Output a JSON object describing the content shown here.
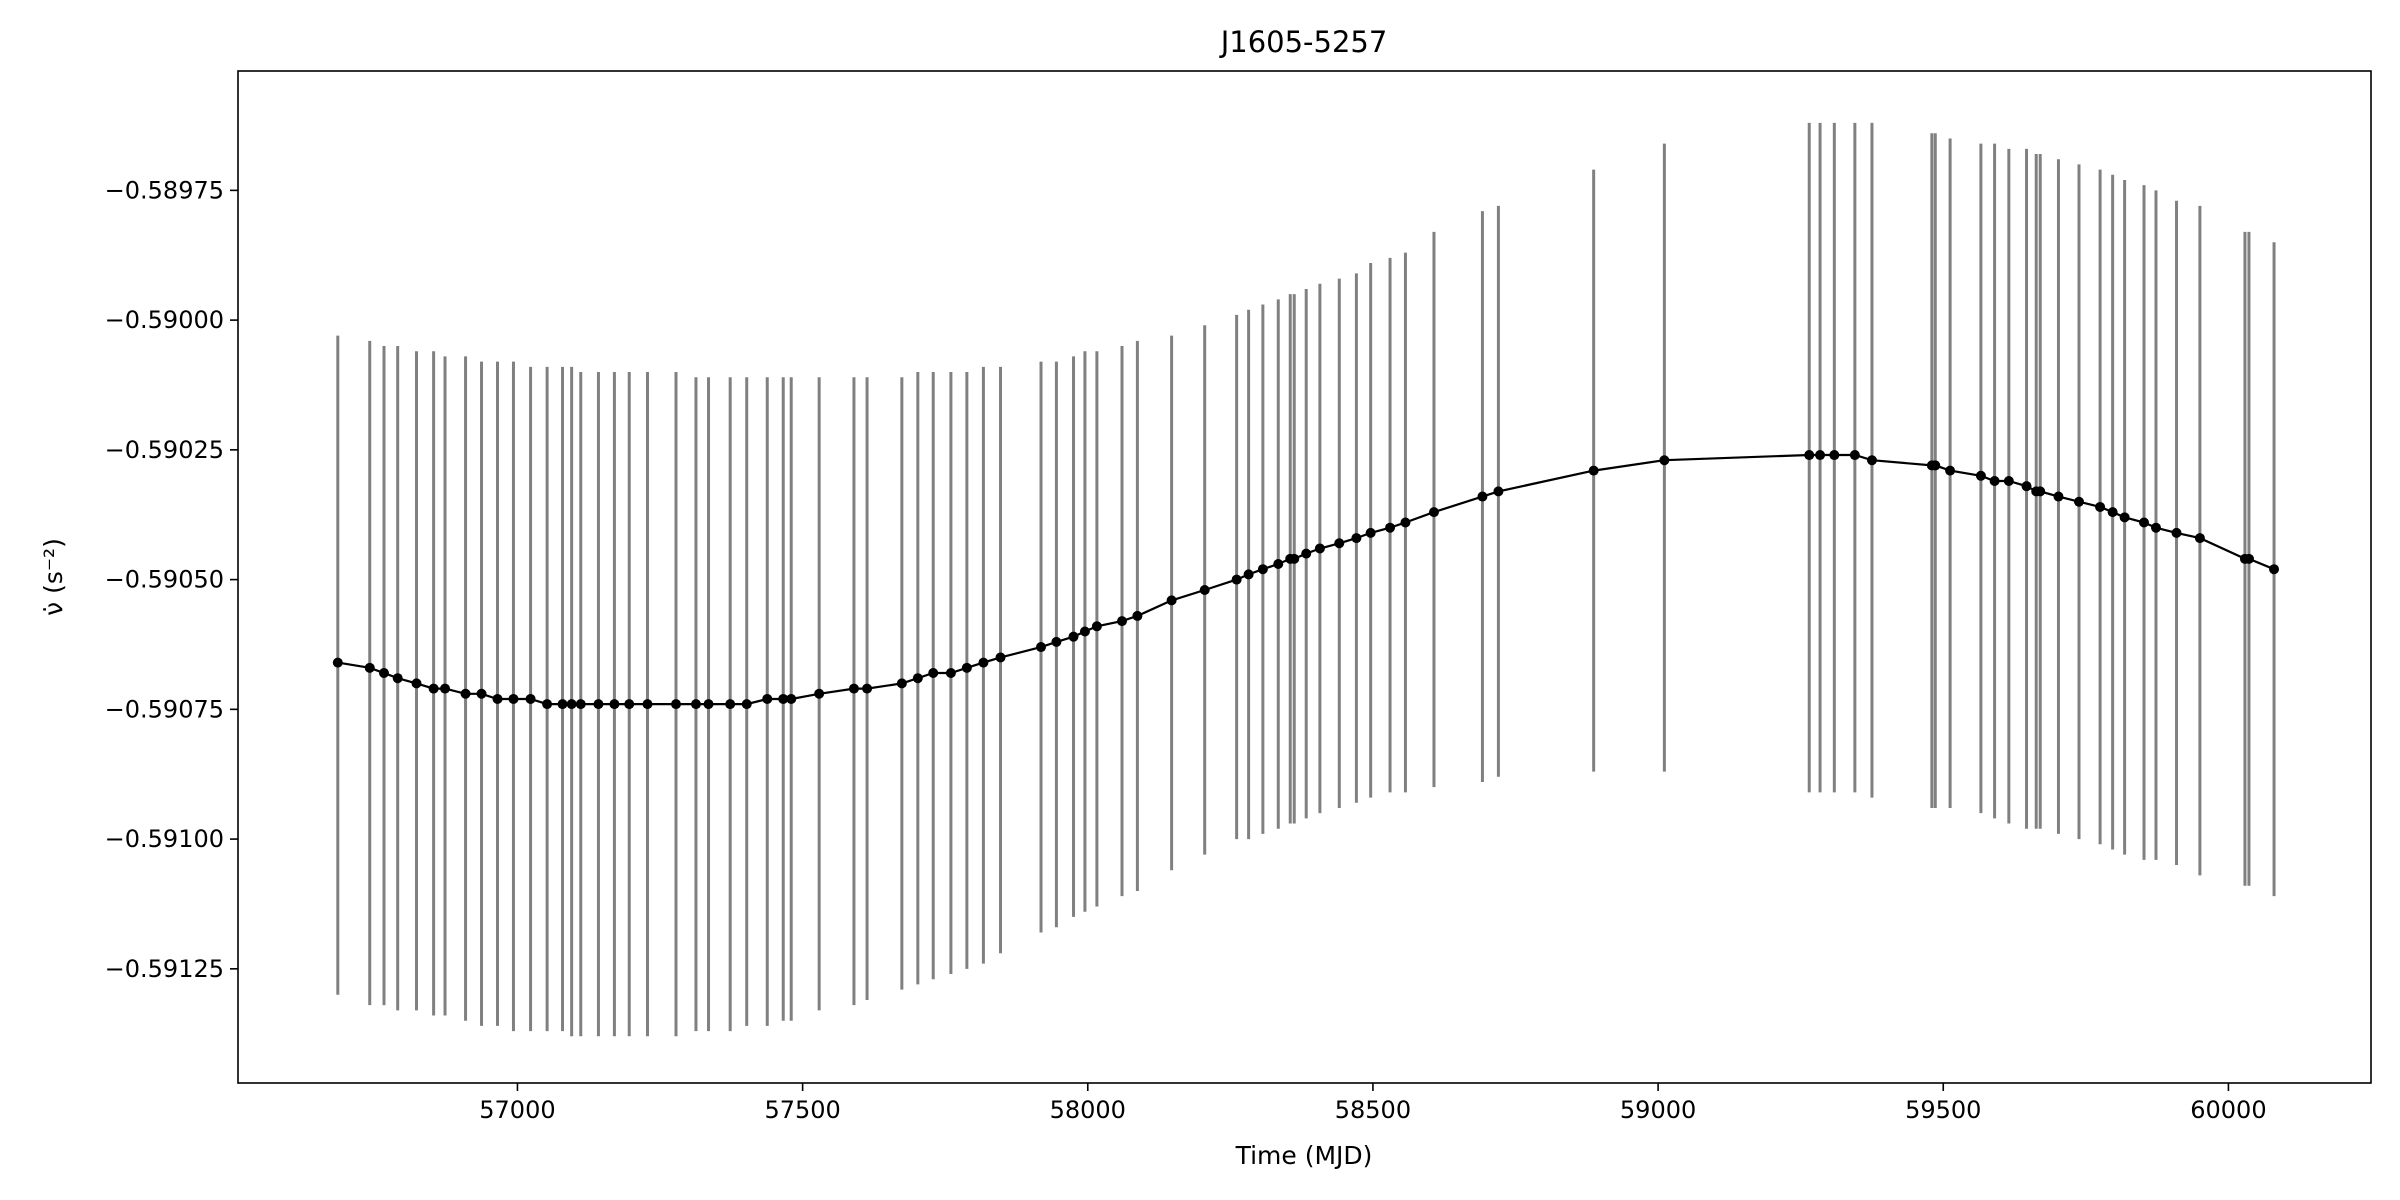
{
  "chart_data": {
    "type": "line",
    "title": "J1605-5257",
    "xlabel": "Time (MJD)",
    "ylabel": "ν̇ (s⁻²)",
    "xlim": [
      56510,
      60250
    ],
    "ylim": [
      -0.59147,
      -0.58952
    ],
    "xticks": [
      57000,
      57500,
      58000,
      58500,
      59000,
      59500,
      60000
    ],
    "xtick_labels": [
      "57000",
      "57500",
      "58000",
      "58500",
      "59000",
      "59500",
      "60000"
    ],
    "yticks": [
      -0.58975,
      -0.59,
      -0.59025,
      -0.5905,
      -0.59075,
      -0.591,
      -0.59125
    ],
    "ytick_labels": [
      "−0.58975",
      "−0.59000",
      "−0.59025",
      "−0.59050",
      "−0.59075",
      "−0.59100",
      "−0.59125"
    ],
    "grid": false,
    "legend": "none",
    "colors": {
      "line": "#000000",
      "marker": "#000000",
      "errorbar": "#808080"
    },
    "series": [
      {
        "x": [
          56685,
          56741,
          56766,
          56790,
          56823,
          56853,
          56873,
          56909,
          56937,
          56965,
          56993,
          57023,
          57052,
          57079,
          57095,
          57111,
          57142,
          57170,
          57196,
          57228,
          57278,
          57313,
          57335,
          57373,
          57402,
          57438,
          57466,
          57480,
          57529,
          57590,
          57613,
          57674,
          57702,
          57729,
          57760,
          57788,
          57817,
          57847,
          57918,
          57945,
          57975,
          57995,
          58016,
          58060,
          58087,
          58147,
          58205,
          58261,
          58282,
          58307,
          58334,
          58355,
          58362,
          58383,
          58407,
          58441,
          58471,
          58496,
          58530,
          58557,
          58607,
          58692,
          58720,
          58887,
          59011,
          59265,
          59284,
          59309,
          59345,
          59375,
          59480,
          59486,
          59512,
          59566,
          59590,
          59615,
          59646,
          59663,
          59670,
          59702,
          59738,
          59775,
          59797,
          59818,
          59852,
          59873,
          59909,
          59950,
          60029,
          60036,
          60080
        ],
        "y": [
          -0.59066,
          -0.59067,
          -0.59068,
          -0.59069,
          -0.5907,
          -0.59071,
          -0.59071,
          -0.59072,
          -0.59072,
          -0.59073,
          -0.59073,
          -0.59073,
          -0.59074,
          -0.59074,
          -0.59074,
          -0.59074,
          -0.59074,
          -0.59074,
          -0.59074,
          -0.59074,
          -0.59074,
          -0.59074,
          -0.59074,
          -0.59074,
          -0.59074,
          -0.59073,
          -0.59073,
          -0.59073,
          -0.59072,
          -0.59071,
          -0.59071,
          -0.5907,
          -0.59069,
          -0.59068,
          -0.59068,
          -0.59067,
          -0.59066,
          -0.59065,
          -0.59063,
          -0.59062,
          -0.59061,
          -0.5906,
          -0.59059,
          -0.59058,
          -0.59057,
          -0.59054,
          -0.59052,
          -0.5905,
          -0.59049,
          -0.59048,
          -0.59047,
          -0.59046,
          -0.59046,
          -0.59045,
          -0.59044,
          -0.59043,
          -0.59042,
          -0.59041,
          -0.5904,
          -0.59039,
          -0.59037,
          -0.59034,
          -0.59033,
          -0.59029,
          -0.59027,
          -0.59026,
          -0.59026,
          -0.59026,
          -0.59026,
          -0.59027,
          -0.59028,
          -0.59028,
          -0.59029,
          -0.5903,
          -0.59031,
          -0.59031,
          -0.59032,
          -0.59033,
          -0.59033,
          -0.59034,
          -0.59035,
          -0.59036,
          -0.59037,
          -0.59038,
          -0.59039,
          -0.5904,
          -0.59041,
          -0.59042,
          -0.59046,
          -0.59046,
          -0.59048
        ],
        "yerr_low": [
          -0.5913,
          -0.59132,
          -0.59132,
          -0.59133,
          -0.59133,
          -0.59134,
          -0.59134,
          -0.59135,
          -0.59136,
          -0.59136,
          -0.59137,
          -0.59137,
          -0.59137,
          -0.59137,
          -0.59138,
          -0.59138,
          -0.59138,
          -0.59138,
          -0.59138,
          -0.59138,
          -0.59138,
          -0.59137,
          -0.59137,
          -0.59137,
          -0.59136,
          -0.59136,
          -0.59135,
          -0.59135,
          -0.59133,
          -0.59132,
          -0.59131,
          -0.59129,
          -0.59128,
          -0.59127,
          -0.59126,
          -0.59125,
          -0.59124,
          -0.59122,
          -0.59118,
          -0.59117,
          -0.59115,
          -0.59114,
          -0.59113,
          -0.59111,
          -0.5911,
          -0.59106,
          -0.59103,
          -0.591,
          -0.591,
          -0.59099,
          -0.59098,
          -0.59097,
          -0.59097,
          -0.59096,
          -0.59095,
          -0.59094,
          -0.59093,
          -0.59092,
          -0.59091,
          -0.59091,
          -0.5909,
          -0.59089,
          -0.59088,
          -0.59087,
          -0.59087,
          -0.59091,
          -0.59091,
          -0.59091,
          -0.59091,
          -0.59092,
          -0.59094,
          -0.59094,
          -0.59094,
          -0.59095,
          -0.59096,
          -0.59097,
          -0.59098,
          -0.59098,
          -0.59098,
          -0.59099,
          -0.591,
          -0.59101,
          -0.59102,
          -0.59103,
          -0.59104,
          -0.59104,
          -0.59105,
          -0.59107,
          -0.59109,
          -0.59109,
          -0.59111
        ],
        "yerr_high": [
          -0.59003,
          -0.59004,
          -0.59005,
          -0.59005,
          -0.59006,
          -0.59006,
          -0.59007,
          -0.59007,
          -0.59008,
          -0.59008,
          -0.59008,
          -0.59009,
          -0.59009,
          -0.59009,
          -0.59009,
          -0.5901,
          -0.5901,
          -0.5901,
          -0.5901,
          -0.5901,
          -0.5901,
          -0.59011,
          -0.59011,
          -0.59011,
          -0.59011,
          -0.59011,
          -0.59011,
          -0.59011,
          -0.59011,
          -0.59011,
          -0.59011,
          -0.59011,
          -0.5901,
          -0.5901,
          -0.5901,
          -0.5901,
          -0.59009,
          -0.59009,
          -0.59008,
          -0.59008,
          -0.59007,
          -0.59006,
          -0.59006,
          -0.59005,
          -0.59004,
          -0.59003,
          -0.59001,
          -0.58999,
          -0.58998,
          -0.58997,
          -0.58996,
          -0.58995,
          -0.58995,
          -0.58994,
          -0.58993,
          -0.58992,
          -0.58991,
          -0.58989,
          -0.58988,
          -0.58987,
          -0.58983,
          -0.58979,
          -0.58978,
          -0.58971,
          -0.58966,
          -0.58962,
          -0.58962,
          -0.58962,
          -0.58962,
          -0.58962,
          -0.58964,
          -0.58964,
          -0.58965,
          -0.58966,
          -0.58966,
          -0.58967,
          -0.58967,
          -0.58968,
          -0.58968,
          -0.58969,
          -0.5897,
          -0.58971,
          -0.58972,
          -0.58973,
          -0.58974,
          -0.58975,
          -0.58977,
          -0.58978,
          -0.58983,
          -0.58983,
          -0.58985
        ]
      }
    ]
  }
}
